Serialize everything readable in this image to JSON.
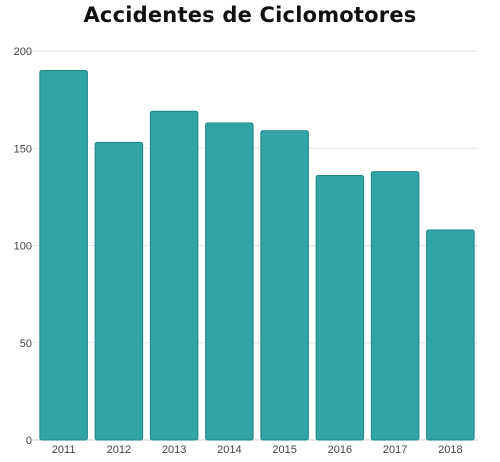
{
  "chart_data": {
    "type": "bar",
    "title": "Accidentes de Ciclomotores",
    "categories": [
      "2011",
      "2012",
      "2013",
      "2014",
      "2015",
      "2016",
      "2017",
      "2018"
    ],
    "values": [
      190,
      153,
      169,
      163,
      159,
      136,
      138,
      108
    ],
    "xlabel": "",
    "ylabel": "",
    "ylim": [
      0,
      200
    ],
    "yticks": [
      0,
      50,
      100,
      150,
      200
    ],
    "grid": true,
    "legend": "none",
    "bar_color": "#31a4a6",
    "bar_edge_color": "#1e8688"
  }
}
